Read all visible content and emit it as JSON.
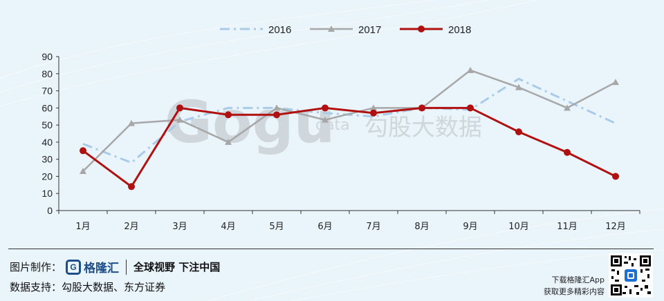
{
  "chart_data": {
    "type": "line",
    "categories": [
      "1月",
      "2月",
      "3月",
      "4月",
      "5月",
      "6月",
      "7月",
      "8月",
      "9月",
      "10月",
      "11月",
      "12月"
    ],
    "series": [
      {
        "name": "2016",
        "color": "#a9cbe8",
        "style": "dash-dot",
        "values": [
          39,
          28,
          52,
          60,
          60,
          57,
          55,
          60,
          59,
          77,
          64,
          51
        ]
      },
      {
        "name": "2017",
        "color": "#a7a7a7",
        "style": "solid-triangle",
        "values": [
          23,
          51,
          53,
          40,
          60,
          53,
          60,
          60,
          82,
          72,
          60,
          75
        ]
      },
      {
        "name": "2018",
        "color": "#b01010",
        "style": "solid-circle",
        "values": [
          35,
          14,
          60,
          56,
          56,
          60,
          57,
          60,
          60,
          46,
          34,
          20
        ]
      }
    ],
    "yticks": [
      "0",
      "10",
      "20",
      "30",
      "40",
      "50",
      "60",
      "70",
      "80",
      "90"
    ],
    "ylim": [
      0,
      90
    ],
    "legend_position": "top"
  },
  "watermark": {
    "brand": "Gogu",
    "sub": "data",
    "cn": "勾股大数据"
  },
  "footer": {
    "made_by_label": "图片制作：",
    "logo_glyph": "G",
    "logo_name": "格隆汇",
    "slogan": "全球视野 下注中国",
    "source_label": "数据支持：",
    "source_value": "勾股大数据、东方证券",
    "app_line1": "下载格隆汇App",
    "app_line2": "获取更多精彩内容"
  }
}
